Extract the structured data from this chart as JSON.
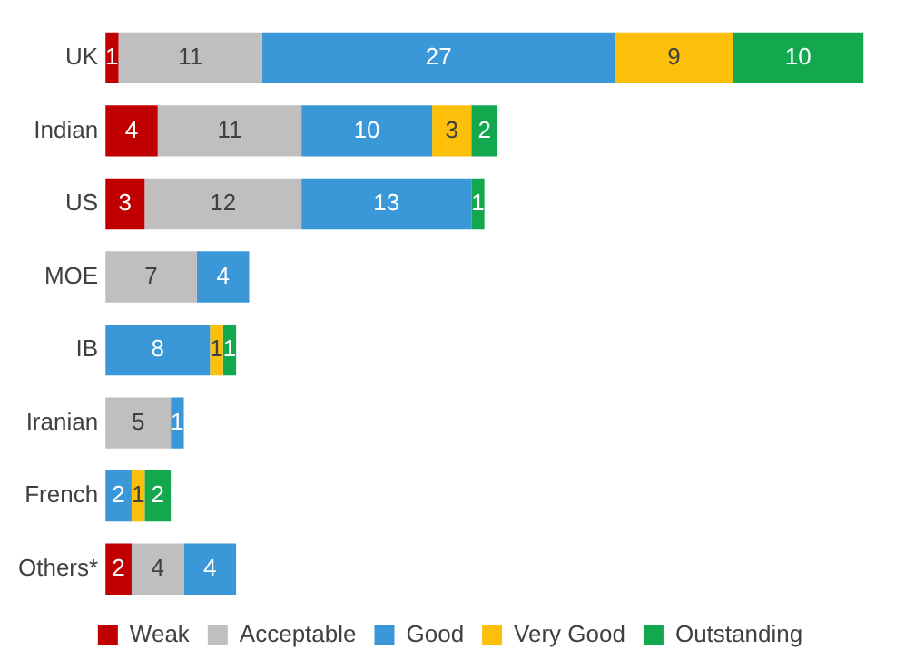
{
  "chart_data": {
    "type": "bar",
    "orientation": "horizontal",
    "stacked": true,
    "data_labels": true,
    "legend": "bottom",
    "grid": false,
    "tick_labels": "y",
    "categories": [
      "UK",
      "Indian",
      "US",
      "MOE",
      "IB",
      "Iranian",
      "French",
      "Others*"
    ],
    "series": [
      {
        "name": "Weak",
        "color": "#c00000",
        "values": [
          1,
          4,
          3,
          null,
          null,
          null,
          null,
          2
        ]
      },
      {
        "name": "Acceptable",
        "color": "#bfbfbf",
        "values": [
          11,
          11,
          12,
          7,
          null,
          5,
          null,
          4
        ]
      },
      {
        "name": "Good",
        "color": "#3a98d8",
        "values": [
          27,
          10,
          13,
          4,
          8,
          1,
          2,
          4
        ]
      },
      {
        "name": "Very Good",
        "color": "#fcc00a",
        "values": [
          9,
          3,
          null,
          null,
          1,
          null,
          1,
          null
        ]
      },
      {
        "name": "Outstanding",
        "color": "#13a84e",
        "values": [
          10,
          2,
          1,
          null,
          1,
          null,
          2,
          null
        ]
      }
    ]
  }
}
